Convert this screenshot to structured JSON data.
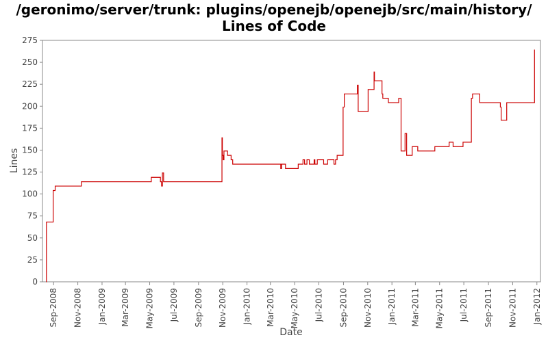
{
  "chart_data": {
    "type": "line",
    "title": "/geronimo/server/trunk: plugins/openejb/openejb/src/main/history/ Lines of Code",
    "xlabel": "Date",
    "ylabel": "Lines",
    "ylim": [
      0,
      275
    ],
    "yticks": [
      "0",
      "25",
      "50",
      "75",
      "100",
      "125",
      "150",
      "175",
      "200",
      "225",
      "250",
      "275"
    ],
    "xlim": [
      "2008-08-04",
      "2012-01-10"
    ],
    "xticks": [
      {
        "date": "2008-09-01",
        "label": "Sep-2008"
      },
      {
        "date": "2008-11-01",
        "label": "Nov-2008"
      },
      {
        "date": "2009-01-01",
        "label": "Jan-2009"
      },
      {
        "date": "2009-03-01",
        "label": "Mar-2009"
      },
      {
        "date": "2009-05-01",
        "label": "May-2009"
      },
      {
        "date": "2009-07-01",
        "label": "Jul-2009"
      },
      {
        "date": "2009-09-01",
        "label": "Sep-2009"
      },
      {
        "date": "2009-11-01",
        "label": "Nov-2009"
      },
      {
        "date": "2010-01-01",
        "label": "Jan-2010"
      },
      {
        "date": "2010-03-01",
        "label": "Mar-2010"
      },
      {
        "date": "2010-05-01",
        "label": "May-2010"
      },
      {
        "date": "2010-07-01",
        "label": "Jul-2010"
      },
      {
        "date": "2010-09-01",
        "label": "Sep-2010"
      },
      {
        "date": "2010-11-01",
        "label": "Nov-2010"
      },
      {
        "date": "2011-01-01",
        "label": "Jan-2011"
      },
      {
        "date": "2011-03-01",
        "label": "Mar-2011"
      },
      {
        "date": "2011-05-01",
        "label": "May-2011"
      },
      {
        "date": "2011-07-01",
        "label": "Jul-2011"
      },
      {
        "date": "2011-09-01",
        "label": "Sep-2011"
      },
      {
        "date": "2011-11-01",
        "label": "Nov-2011"
      },
      {
        "date": "2012-01-01",
        "label": "Jan-2012"
      }
    ],
    "grid": false,
    "line_color": "#cc0000",
    "series": [
      {
        "step": true,
        "points": [
          [
            "2008-08-13",
            0
          ],
          [
            "2008-08-14",
            68
          ],
          [
            "2008-08-31",
            104
          ],
          [
            "2008-09-05",
            109
          ],
          [
            "2008-11-10",
            114
          ],
          [
            "2009-05-05",
            119
          ],
          [
            "2009-05-28",
            114
          ],
          [
            "2009-05-31",
            109
          ],
          [
            "2009-06-02",
            124
          ],
          [
            "2009-06-05",
            114
          ],
          [
            "2009-10-30",
            164
          ],
          [
            "2009-10-31",
            144
          ],
          [
            "2009-11-02",
            139
          ],
          [
            "2009-11-04",
            149
          ],
          [
            "2009-11-13",
            144
          ],
          [
            "2009-11-22",
            139
          ],
          [
            "2009-11-26",
            134
          ],
          [
            "2010-03-27",
            129
          ],
          [
            "2010-03-29",
            134
          ],
          [
            "2010-04-08",
            129
          ],
          [
            "2010-05-10",
            134
          ],
          [
            "2010-05-22",
            139
          ],
          [
            "2010-05-26",
            134
          ],
          [
            "2010-06-01",
            139
          ],
          [
            "2010-06-07",
            134
          ],
          [
            "2010-06-19",
            139
          ],
          [
            "2010-06-21",
            134
          ],
          [
            "2010-06-27",
            139
          ],
          [
            "2010-07-13",
            134
          ],
          [
            "2010-07-23",
            139
          ],
          [
            "2010-08-08",
            134
          ],
          [
            "2010-08-12",
            139
          ],
          [
            "2010-08-16",
            144
          ],
          [
            "2010-08-31",
            199
          ],
          [
            "2010-09-03",
            214
          ],
          [
            "2010-10-06",
            224
          ],
          [
            "2010-10-08",
            194
          ],
          [
            "2010-11-02",
            219
          ],
          [
            "2010-11-17",
            239
          ],
          [
            "2010-11-18",
            229
          ],
          [
            "2010-12-07",
            214
          ],
          [
            "2010-12-09",
            209
          ],
          [
            "2010-12-23",
            204
          ],
          [
            "2011-01-18",
            209
          ],
          [
            "2011-01-24",
            149
          ],
          [
            "2011-02-03",
            169
          ],
          [
            "2011-02-07",
            144
          ],
          [
            "2011-02-21",
            154
          ],
          [
            "2011-03-07",
            149
          ],
          [
            "2011-04-19",
            154
          ],
          [
            "2011-05-25",
            159
          ],
          [
            "2011-06-04",
            154
          ],
          [
            "2011-06-29",
            159
          ],
          [
            "2011-07-20",
            209
          ],
          [
            "2011-07-23",
            214
          ],
          [
            "2011-08-10",
            204
          ],
          [
            "2011-10-01",
            199
          ],
          [
            "2011-10-03",
            184
          ],
          [
            "2011-10-17",
            204
          ],
          [
            "2011-12-26",
            264
          ],
          [
            "2011-12-27",
            264
          ]
        ]
      }
    ]
  }
}
